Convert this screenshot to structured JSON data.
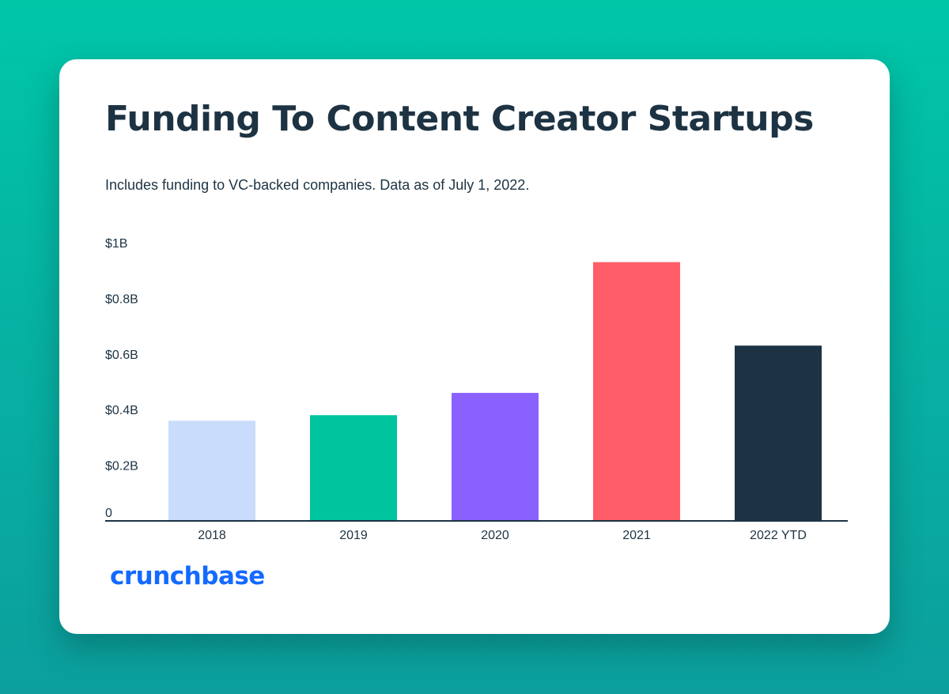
{
  "chart_data": {
    "type": "bar",
    "title": "Funding To Content Creator Startups",
    "subtitle": "Includes funding to VC-backed companies. Data as of July 1, 2022.",
    "categories": [
      "2018",
      "2019",
      "2020",
      "2021",
      "2022 YTD"
    ],
    "values": [
      0.36,
      0.38,
      0.46,
      0.93,
      0.63
    ],
    "value_unit": "billions USD",
    "colors": [
      "#cadcfc",
      "#00c49e",
      "#8a60ff",
      "#ff5d6a",
      "#1d3343"
    ],
    "ylim": [
      0,
      1
    ],
    "yticks": [
      0,
      0.2,
      0.4,
      0.6,
      0.8,
      1
    ],
    "ytick_labels": [
      "0",
      "$0.2B",
      "$0.4B",
      "$0.6B",
      "$0.8B",
      "$1B"
    ],
    "xlabel": "",
    "ylabel": "",
    "grid": false,
    "legend": "none"
  },
  "brand": {
    "name": "crunchbase",
    "color": "#146aff"
  },
  "colors": {
    "text": "#1d3343",
    "axis": "#1d3343",
    "background_card": "#ffffff"
  }
}
